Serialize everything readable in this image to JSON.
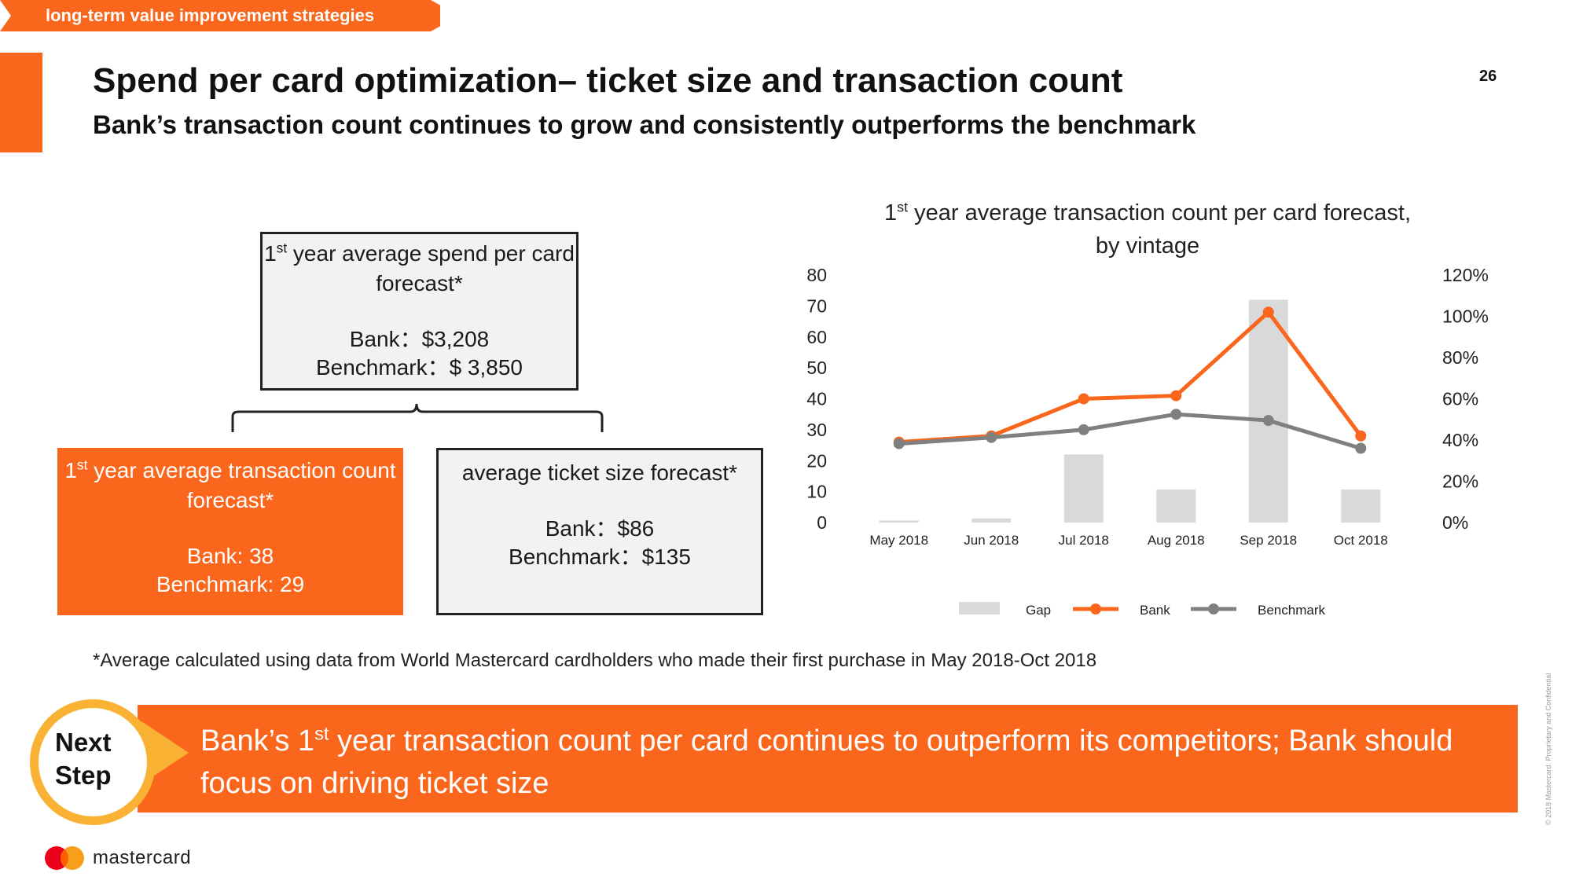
{
  "header": {
    "section_tag": "long-term value improvement strategies",
    "title": "Spend per card optimization– ticket size and transaction count",
    "subtitle": "Bank’s transaction count continues to grow and consistently outperforms the benchmark",
    "page_number": "26"
  },
  "boxes": {
    "spend": {
      "title_ord": "1",
      "title_sup": "st",
      "title_rest": " year average spend per card forecast*",
      "line1": "Bank：$3,208",
      "line2": "Benchmark：$ 3,850"
    },
    "count": {
      "title_ord": "1",
      "title_sup": "st",
      "title_rest": " year average transaction count forecast*",
      "line1": "Bank: 38",
      "line2": "Benchmark: 29"
    },
    "ticket": {
      "title": "average ticket size forecast*",
      "line1": "Bank：$86",
      "line2": "Benchmark：$135"
    }
  },
  "chart_data": {
    "type": "bar+line",
    "title_ord": "1",
    "title_sup": "st",
    "title_rest": " year average transaction count per card forecast, by vintage",
    "categories": [
      "May 2018",
      "Jun 2018",
      "Jul 2018",
      "Aug 2018",
      "Sep 2018",
      "Oct 2018"
    ],
    "y_left": {
      "ticks": [
        "0",
        "10",
        "20",
        "30",
        "40",
        "50",
        "60",
        "70",
        "80"
      ],
      "ylim": [
        0,
        80
      ]
    },
    "y_right": {
      "ticks": [
        "0%",
        "20%",
        "40%",
        "60%",
        "80%",
        "100%",
        "120%"
      ],
      "ylim": [
        0,
        1.2
      ]
    },
    "series": [
      {
        "name": "Gap",
        "type": "bar",
        "axis": "right",
        "color": "#d9d9d9",
        "values": [
          0.01,
          0.02,
          0.33,
          0.16,
          1.08,
          0.16
        ]
      },
      {
        "name": "Bank",
        "type": "line",
        "axis": "left",
        "color": "#f9661c",
        "values": [
          26,
          28,
          40,
          41,
          68,
          28
        ]
      },
      {
        "name": "Benchmark",
        "type": "line",
        "axis": "left",
        "color": "#808080",
        "values": [
          25.5,
          27.5,
          30,
          35,
          33,
          24
        ]
      }
    ],
    "legend_position": "bottom"
  },
  "footnote": "*Average calculated using data from World Mastercard cardholders who made their first purchase in May 2018-Oct 2018",
  "next_step": {
    "label_line1": "Next",
    "label_line2": "Step",
    "text_a": "Bank’s 1",
    "text_sup": "st",
    "text_b": " year transaction count per card continues to outperform its competitors; Bank should focus on driving ticket size"
  },
  "footer": {
    "brand": "mastercard",
    "copyright": "© 2018 Mastercard. Proprietary and Confidential"
  },
  "colors": {
    "accent": "#f9661c",
    "next_step_ring": "#f9b233"
  }
}
